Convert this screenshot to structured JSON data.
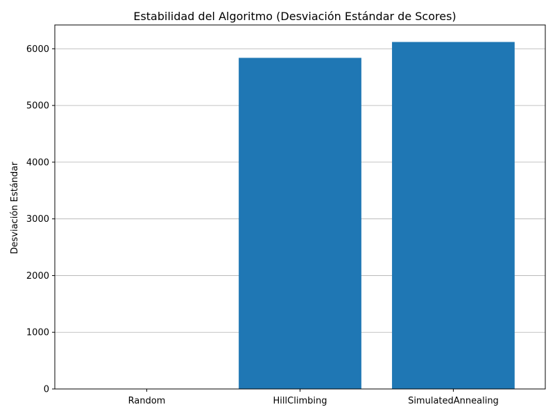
{
  "chart_data": {
    "type": "bar",
    "title": "Estabilidad del Algoritmo (Desviación Estándar de Scores)",
    "xlabel": "",
    "ylabel": "Desviación Estándar",
    "categories": [
      "Random",
      "HillClimbing",
      "SimulatedAnnealing"
    ],
    "values": [
      0,
      5840,
      6120
    ],
    "ylim": [
      0,
      6420
    ],
    "yticks": [
      0,
      1000,
      2000,
      3000,
      4000,
      5000,
      6000
    ],
    "grid": "y",
    "bar_color": "#1f77b4"
  }
}
